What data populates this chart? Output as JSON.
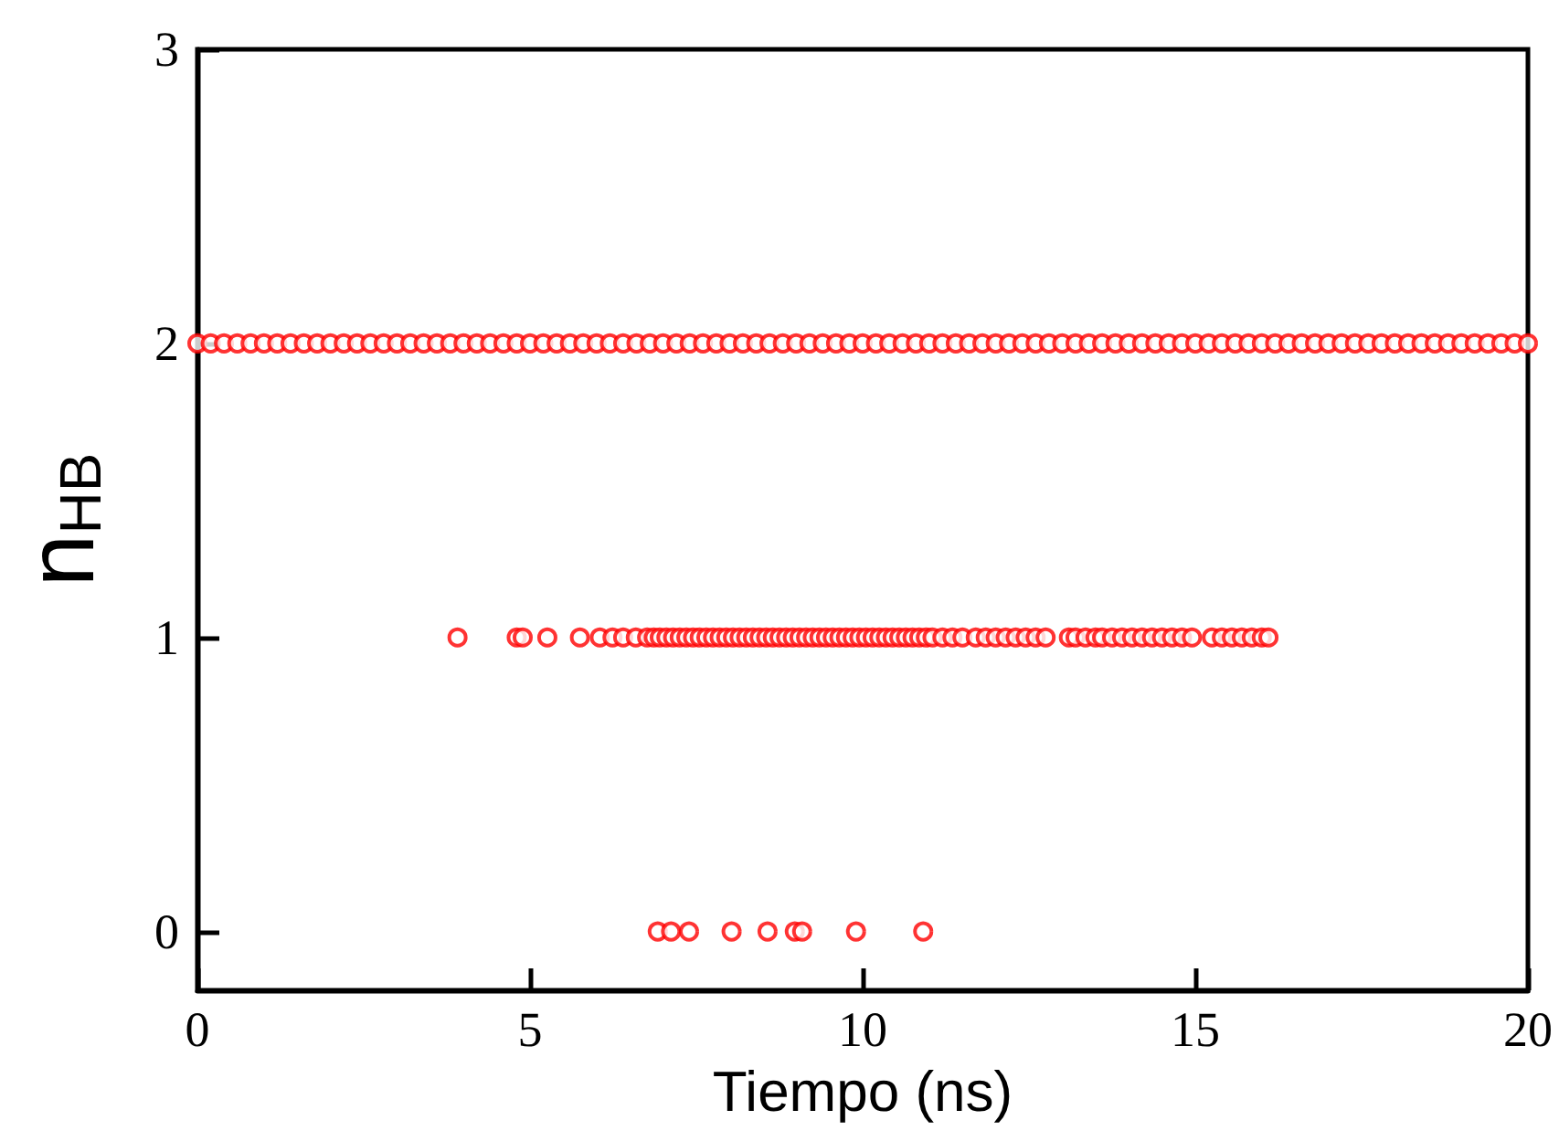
{
  "chart_data": {
    "type": "scatter",
    "xlabel": "Tiempo (ns)",
    "ylabel": "n$_{HB}$",
    "xlim": [
      0,
      20
    ],
    "xticks": [
      0,
      5,
      10,
      15,
      20
    ],
    "ylim": [
      -0.2,
      3
    ],
    "yticks": [
      0,
      1,
      2,
      3
    ],
    "grid": false,
    "marker": "circle",
    "series": [
      {
        "color": "#ff0000",
        "x": [
          6.92,
          7.12,
          7.39,
          8.03,
          8.57,
          8.98,
          9.09,
          9.9,
          10.91,
          3.91,
          4.8,
          4.89,
          5.26,
          5.75,
          6.05,
          6.24,
          6.4,
          6.59,
          6.76,
          6.86,
          6.95,
          7.05,
          7.15,
          7.25,
          7.35,
          7.45,
          7.55,
          7.65,
          7.75,
          7.85,
          7.95,
          8.05,
          8.15,
          8.25,
          8.35,
          8.45,
          8.55,
          8.65,
          8.75,
          8.85,
          8.95,
          9.05,
          9.15,
          9.25,
          9.35,
          9.45,
          9.55,
          9.65,
          9.75,
          9.85,
          9.95,
          10.05,
          10.15,
          10.25,
          10.35,
          10.45,
          10.55,
          10.65,
          10.75,
          10.85,
          10.95,
          11.05,
          11.2,
          11.35,
          11.5,
          11.7,
          11.85,
          12,
          12.15,
          12.3,
          12.45,
          12.6,
          12.75,
          13.1,
          13.2,
          13.35,
          13.5,
          13.6,
          13.75,
          13.9,
          14.05,
          14.2,
          14.35,
          14.5,
          14.65,
          14.8,
          14.95,
          15.25,
          15.4,
          15.55,
          15.7,
          15.85,
          16,
          16.1,
          0,
          0.2,
          0.4,
          0.6,
          0.8,
          1,
          1.2,
          1.4,
          1.6,
          1.8,
          2,
          2.2,
          2.4,
          2.6,
          2.8,
          3,
          3.2,
          3.4,
          3.6,
          3.8,
          4,
          4.2,
          4.4,
          4.6,
          4.8,
          5,
          5.2,
          5.4,
          5.6,
          5.8,
          6,
          6.2,
          6.4,
          6.6,
          6.8,
          7,
          7.2,
          7.4,
          7.6,
          7.8,
          8,
          8.2,
          8.4,
          8.6,
          8.8,
          9,
          9.2,
          9.4,
          9.6,
          9.8,
          10,
          10.2,
          10.4,
          10.6,
          10.8,
          11,
          11.2,
          11.4,
          11.6,
          11.8,
          12,
          12.2,
          12.4,
          12.6,
          12.8,
          13,
          13.2,
          13.4,
          13.6,
          13.8,
          14,
          14.2,
          14.4,
          14.6,
          14.8,
          15,
          15.2,
          15.4,
          15.6,
          15.8,
          16,
          16.2,
          16.4,
          16.6,
          16.8,
          17,
          17.2,
          17.4,
          17.6,
          17.8,
          18,
          18.2,
          18.4,
          18.6,
          18.8,
          19,
          19.2,
          19.4,
          19.6,
          19.8,
          20
        ],
        "values": [
          0,
          0,
          0,
          0,
          0,
          0,
          0,
          0,
          0,
          1,
          1,
          1,
          1,
          1,
          1,
          1,
          1,
          1,
          1,
          1,
          1,
          1,
          1,
          1,
          1,
          1,
          1,
          1,
          1,
          1,
          1,
          1,
          1,
          1,
          1,
          1,
          1,
          1,
          1,
          1,
          1,
          1,
          1,
          1,
          1,
          1,
          1,
          1,
          1,
          1,
          1,
          1,
          1,
          1,
          1,
          1,
          1,
          1,
          1,
          1,
          1,
          1,
          1,
          1,
          1,
          1,
          1,
          1,
          1,
          1,
          1,
          1,
          1,
          1,
          1,
          1,
          1,
          1,
          1,
          1,
          1,
          1,
          1,
          1,
          1,
          1,
          1,
          1,
          1,
          1,
          1,
          1,
          1,
          1,
          2,
          2,
          2,
          2,
          2,
          2,
          2,
          2,
          2,
          2,
          2,
          2,
          2,
          2,
          2,
          2,
          2,
          2,
          2,
          2,
          2,
          2,
          2,
          2,
          2,
          2,
          2,
          2,
          2,
          2,
          2,
          2,
          2,
          2,
          2,
          2,
          2,
          2,
          2,
          2,
          2,
          2,
          2,
          2,
          2,
          2,
          2,
          2,
          2,
          2,
          2,
          2,
          2,
          2,
          2,
          2,
          2,
          2,
          2,
          2,
          2,
          2,
          2,
          2,
          2,
          2,
          2,
          2,
          2,
          2,
          2,
          2,
          2,
          2,
          2,
          2,
          2,
          2,
          2,
          2,
          2,
          2,
          2,
          2,
          2,
          2,
          2,
          2,
          2,
          2,
          2,
          2,
          2,
          2,
          2,
          2,
          2,
          2,
          2,
          2,
          2
        ]
      }
    ]
  }
}
